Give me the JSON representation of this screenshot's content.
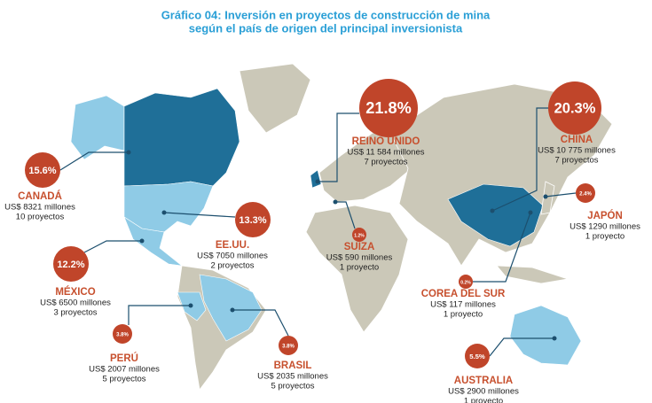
{
  "header": {
    "title": "Gráfico 04: Inversión en proyectos de construcción de mina",
    "subtitle": "según el país de origen del principal inversionista"
  },
  "countries": [
    {
      "percent": "15.6%",
      "name": "CANADÁ",
      "amount": "US$ 8321 millones",
      "projects": "10 proyectos"
    },
    {
      "percent": "13.3%",
      "name": "EE.UU.",
      "amount": "US$ 7050 millones",
      "projects": "2 proyectos"
    },
    {
      "percent": "12.2%",
      "name": "MÉXICO",
      "amount": "US$ 6500 millones",
      "projects": "3 proyectos"
    },
    {
      "percent": "3.8%",
      "name": "PERÚ",
      "amount": "US$ 2007 millones",
      "projects": "5 proyectos"
    },
    {
      "percent": "3.8%",
      "name": "BRASIL",
      "amount": "US$ 2035 millones",
      "projects": "5 proyectos"
    },
    {
      "percent": "21.8%",
      "name": "REINO UNIDO",
      "amount": "US$ 11 584 millones",
      "projects": "7 proyectos"
    },
    {
      "percent": "1.2%",
      "name": "SUIZA",
      "amount": "US$ 590 millones",
      "projects": "1 proyecto"
    },
    {
      "percent": "20.3%",
      "name": "CHINA",
      "amount": "US$ 10 775 millones",
      "projects": "7 proyectos"
    },
    {
      "percent": "2.4%",
      "name": "JAPÓN",
      "amount": "US$ 1290 millones",
      "projects": "1 proyecto"
    },
    {
      "percent": "0.2%",
      "name": "COREA DEL SUR",
      "amount": "US$ 117 millones",
      "projects": "1 proyecto"
    },
    {
      "percent": "5.5%",
      "name": "AUSTRALIA",
      "amount": "US$ 2900 millones",
      "projects": "1 proyecto"
    }
  ]
}
